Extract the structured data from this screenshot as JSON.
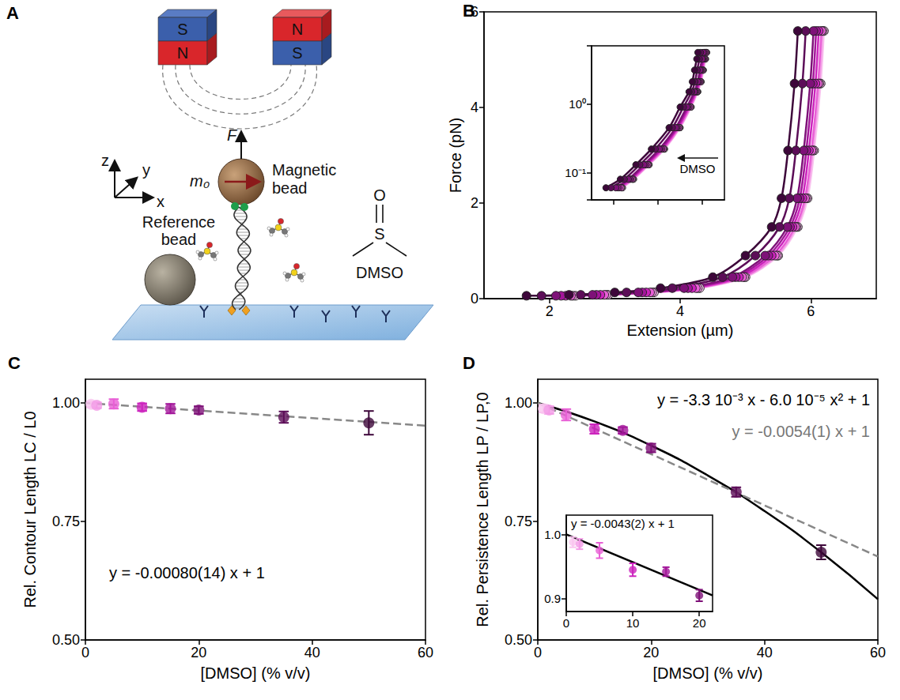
{
  "diagram": {
    "panel": "A",
    "magnets": [
      [
        "S",
        "N"
      ],
      [
        "N",
        "S"
      ]
    ],
    "axes": [
      "z",
      "y",
      "x"
    ],
    "force": "F",
    "moment": "m₀",
    "magnetic_bead": "Magnetic bead",
    "reference_bead": "Reference bead",
    "molecule": {
      "name": "DMSO",
      "atoms": [
        "O",
        "S"
      ]
    }
  },
  "chart_data": [
    {
      "panel": "B",
      "type": "line",
      "marker": "circle",
      "xlabel": "Extension (µm)",
      "ylabel": "Force (pN)",
      "xlim": [
        1,
        7
      ],
      "xticks": [
        2,
        4,
        6
      ],
      "ylim": [
        0,
        6
      ],
      "yticks": [
        0,
        2,
        4,
        6
      ],
      "series": [
        {
          "color": "#f9c4ef",
          "x": [
            2.4,
            2.9,
            3.6,
            4.3,
            5.0,
            5.5,
            5.8,
            5.95,
            6.05,
            6.15,
            6.2
          ],
          "values": [
            0.06,
            0.08,
            0.13,
            0.22,
            0.45,
            0.9,
            1.5,
            2.1,
            3.1,
            4.5,
            5.6
          ]
        },
        {
          "color": "#f39ae6",
          "x": [
            2.36,
            2.87,
            3.57,
            4.27,
            4.98,
            5.48,
            5.78,
            5.93,
            6.03,
            6.13,
            6.18
          ],
          "values": [
            0.06,
            0.08,
            0.13,
            0.22,
            0.45,
            0.9,
            1.5,
            2.1,
            3.1,
            4.5,
            5.6
          ]
        },
        {
          "color": "#e85fd6",
          "x": [
            2.33,
            2.84,
            3.54,
            4.24,
            4.95,
            5.45,
            5.76,
            5.91,
            6.01,
            6.11,
            6.16
          ],
          "values": [
            0.06,
            0.08,
            0.13,
            0.22,
            0.45,
            0.9,
            1.5,
            2.1,
            3.1,
            4.5,
            5.6
          ]
        },
        {
          "color": "#cc23bd",
          "x": [
            2.25,
            2.78,
            3.48,
            4.18,
            4.9,
            5.4,
            5.72,
            5.87,
            5.97,
            6.07,
            6.12
          ],
          "values": [
            0.06,
            0.08,
            0.13,
            0.22,
            0.45,
            0.9,
            1.5,
            2.1,
            3.1,
            4.5,
            5.6
          ]
        },
        {
          "color": "#a3169a",
          "x": [
            2.18,
            2.72,
            3.42,
            4.12,
            4.85,
            5.35,
            5.68,
            5.83,
            5.93,
            6.03,
            6.08
          ],
          "values": [
            0.06,
            0.08,
            0.13,
            0.22,
            0.45,
            0.9,
            1.5,
            2.1,
            3.1,
            4.5,
            5.6
          ]
        },
        {
          "color": "#7e1178",
          "x": [
            2.1,
            2.66,
            3.36,
            4.06,
            4.8,
            5.3,
            5.64,
            5.79,
            5.89,
            5.99,
            6.04
          ],
          "values": [
            0.06,
            0.08,
            0.13,
            0.22,
            0.45,
            0.9,
            1.5,
            2.1,
            3.1,
            4.5,
            5.6
          ]
        },
        {
          "color": "#5c0d58",
          "x": [
            1.88,
            2.48,
            3.18,
            3.88,
            4.65,
            5.15,
            5.52,
            5.67,
            5.77,
            5.87,
            5.92
          ],
          "values": [
            0.06,
            0.08,
            0.13,
            0.22,
            0.45,
            0.9,
            1.5,
            2.1,
            3.1,
            4.5,
            5.6
          ]
        },
        {
          "color": "#3d073a",
          "x": [
            1.65,
            2.3,
            3.0,
            3.7,
            4.5,
            5.0,
            5.4,
            5.55,
            5.65,
            5.75,
            5.8
          ],
          "values": [
            0.06,
            0.08,
            0.13,
            0.22,
            0.45,
            0.9,
            1.5,
            2.1,
            3.1,
            4.5,
            5.6
          ]
        }
      ],
      "inset": {
        "log": "y",
        "tick_labels": "y",
        "xlim": [
          1,
          7
        ],
        "xticks": [
          2,
          4,
          6
        ],
        "ylim": [
          0.04,
          7
        ],
        "yticks": [
          {
            "value": 0.1,
            "label": "10⁻¹"
          },
          {
            "value": 1,
            "label": "10⁰"
          }
        ],
        "annotation": "DMSO"
      }
    },
    {
      "panel": "C",
      "type": "scatter",
      "marker": "circle",
      "xlabel": "[DMSO] (% v/v)",
      "ylabel": "Rel. Contour Length LC / L0",
      "xlim": [
        0,
        60
      ],
      "xticks": [
        0,
        20,
        40,
        60
      ],
      "ylim": [
        0.5,
        1.05
      ],
      "yticks": [
        {
          "value": 0.5,
          "label": "0.50"
        },
        {
          "value": 0.75,
          "label": "0.75"
        },
        {
          "value": 1,
          "label": "1.00"
        }
      ],
      "x": [
        1,
        2,
        5,
        10,
        15,
        20,
        35,
        50
      ],
      "values": [
        0.997,
        0.995,
        0.998,
        0.991,
        0.988,
        0.985,
        0.97,
        0.958
      ],
      "errors": [
        0.006,
        0.006,
        0.01,
        0.008,
        0.01,
        0.008,
        0.012,
        0.025
      ],
      "colors": [
        "#f9c4ef",
        "#f39ae6",
        "#e85fd6",
        "#cc23bd",
        "#a3169a",
        "#7e1178",
        "#5c0d58",
        "#3d073a"
      ],
      "fits": [
        {
          "x": [
            0,
            60
          ],
          "values": [
            1,
            0.952
          ],
          "color": "#888888",
          "line_style": "dashed"
        }
      ],
      "annotations": [
        {
          "text": "y = -0.00080(14) x + 1",
          "color": "#000000"
        }
      ]
    },
    {
      "panel": "D",
      "type": "scatter",
      "marker": "circle",
      "xlabel": "[DMSO] (% v/v)",
      "ylabel": "Rel. Persistence Length LP / LP,0",
      "xlim": [
        0,
        60
      ],
      "xticks": [
        0,
        20,
        40,
        60
      ],
      "ylim": [
        0.5,
        1.05
      ],
      "yticks": [
        {
          "value": 0.5,
          "label": "0.50"
        },
        {
          "value": 0.75,
          "label": "0.75"
        },
        {
          "value": 1,
          "label": "1.00"
        }
      ],
      "x": [
        1,
        2,
        5,
        10,
        15,
        20,
        35,
        50
      ],
      "values": [
        0.988,
        0.985,
        0.975,
        0.945,
        0.942,
        0.905,
        0.812,
        0.685
      ],
      "errors": [
        0.008,
        0.008,
        0.012,
        0.01,
        0.007,
        0.009,
        0.01,
        0.015
      ],
      "colors": [
        "#f9c4ef",
        "#f39ae6",
        "#e85fd6",
        "#cc23bd",
        "#a3169a",
        "#7e1178",
        "#5c0d58",
        "#3d073a"
      ],
      "fits": [
        {
          "x": [
            0,
            10,
            20,
            30,
            40,
            50,
            60
          ],
          "values": [
            1,
            0.961,
            0.91,
            0.847,
            0.772,
            0.685,
            0.586
          ],
          "color": "#000000",
          "line_style": "solid"
        },
        {
          "x": [
            0,
            60
          ],
          "values": [
            1,
            0.676
          ],
          "color": "#888888",
          "line_style": "dashed"
        }
      ],
      "annotations": [
        {
          "text": "y = -3.3 10⁻³ x - 6.0 10⁻⁵ x² + 1",
          "color": "#000000"
        },
        {
          "text": "y = -0.0054(1) x + 1",
          "color": "#777777"
        }
      ],
      "inset": {
        "xlim": [
          0,
          22
        ],
        "xticks": [
          0,
          10,
          20
        ],
        "ylim": [
          0.88,
          1.03
        ],
        "yticks": [
          {
            "value": 0.9,
            "label": "0.9"
          },
          {
            "value": 1,
            "label": "1.0"
          }
        ],
        "x": [
          1,
          2,
          5,
          10,
          15,
          20
        ],
        "values": [
          0.988,
          0.985,
          0.975,
          0.945,
          0.942,
          0.905
        ],
        "errors": [
          0.008,
          0.008,
          0.012,
          0.01,
          0.007,
          0.009
        ],
        "colors": [
          "#f9c4ef",
          "#f39ae6",
          "#e85fd6",
          "#cc23bd",
          "#a3169a",
          "#7e1178"
        ],
        "fits": [
          {
            "x": [
              0,
              22
            ],
            "values": [
              1,
              0.905
            ],
            "color": "#000000",
            "line_style": "solid"
          }
        ],
        "annotations": [
          {
            "text": "y = -0.0043(2) x + 1",
            "color": "#000000"
          }
        ]
      }
    }
  ]
}
